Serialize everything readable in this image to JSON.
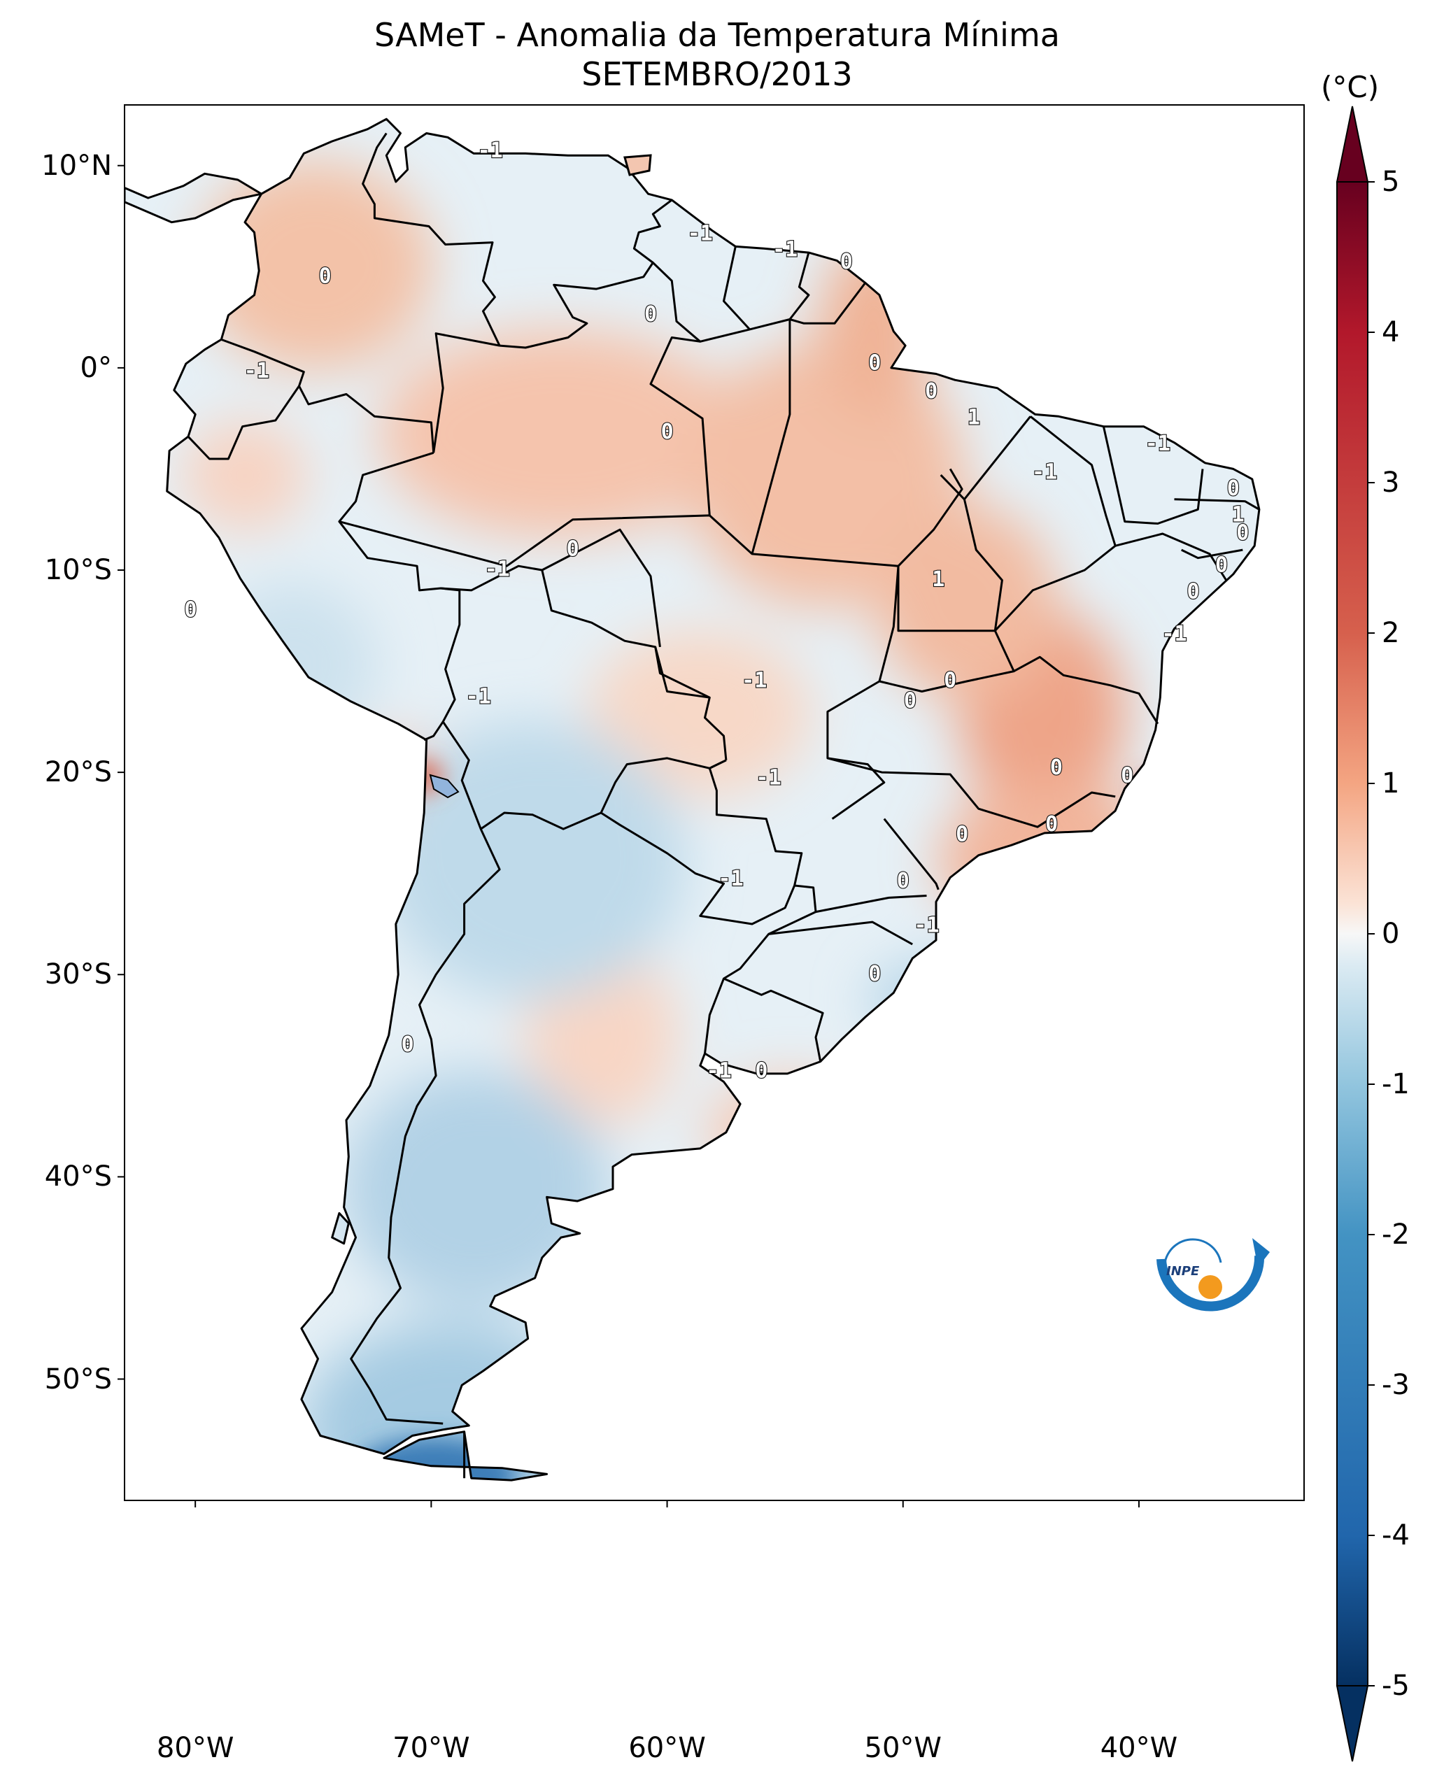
{
  "title": {
    "line1": "SAMeT - Anomalia da Temperatura Mínima",
    "line2": "SETEMBRO/2013"
  },
  "axes": {
    "lat_labels": [
      "10°N",
      "0°",
      "10°S",
      "20°S",
      "30°S",
      "40°S",
      "50°S"
    ],
    "lat_values": [
      10,
      0,
      -10,
      -20,
      -30,
      -40,
      -50
    ],
    "lon_labels": [
      "80°W",
      "70°W",
      "60°W",
      "50°W",
      "40°W"
    ],
    "lon_values": [
      -80,
      -70,
      -60,
      -50,
      -40
    ],
    "lon_range": [
      -83,
      -33
    ],
    "lat_range": [
      -56,
      13
    ]
  },
  "colorbar": {
    "unit": "(°C)",
    "ticks": [
      "5",
      "4",
      "3",
      "2",
      "1",
      "0",
      "-1",
      "-2",
      "-3",
      "-4",
      "-5"
    ],
    "tick_values": [
      5,
      4,
      3,
      2,
      1,
      0,
      -1,
      -2,
      -3,
      -4,
      -5
    ],
    "colors": {
      "max": "#67001f",
      "high": "#d6604d",
      "mid_high": "#f4a582",
      "zero": "#f7f7f7",
      "mid_low": "#92c5de",
      "low": "#4393c3",
      "min": "#053061"
    }
  },
  "contour_labels": [
    {
      "text": "-1",
      "lon": -67.5,
      "lat": 10.7
    },
    {
      "text": "0",
      "lon": -74.5,
      "lat": 4.5
    },
    {
      "text": "-1",
      "lon": -58.6,
      "lat": 6.6
    },
    {
      "text": "-1",
      "lon": -55.0,
      "lat": 5.8
    },
    {
      "text": "0",
      "lon": -52.4,
      "lat": 5.2
    },
    {
      "text": "0",
      "lon": -60.7,
      "lat": 2.6
    },
    {
      "text": "-1",
      "lon": -77.4,
      "lat": -0.2
    },
    {
      "text": "0",
      "lon": -51.2,
      "lat": 0.2
    },
    {
      "text": "0",
      "lon": -60.0,
      "lat": -3.2
    },
    {
      "text": "0",
      "lon": -48.8,
      "lat": -1.2
    },
    {
      "text": "1",
      "lon": -47.0,
      "lat": -2.5
    },
    {
      "text": "-1",
      "lon": -39.2,
      "lat": -3.8
    },
    {
      "text": "-1",
      "lon": -44.0,
      "lat": -5.2
    },
    {
      "text": "0",
      "lon": -36.0,
      "lat": -6.0
    },
    {
      "text": "1",
      "lon": -35.8,
      "lat": -7.3
    },
    {
      "text": "0",
      "lon": -35.6,
      "lat": -8.2
    },
    {
      "text": "0",
      "lon": -36.5,
      "lat": -9.8
    },
    {
      "text": "0",
      "lon": -37.7,
      "lat": -11.1
    },
    {
      "text": "-1",
      "lon": -38.5,
      "lat": -13.2
    },
    {
      "text": "0",
      "lon": -64.0,
      "lat": -9.0
    },
    {
      "text": "-1",
      "lon": -67.2,
      "lat": -10.0
    },
    {
      "text": "1",
      "lon": -48.5,
      "lat": -10.5
    },
    {
      "text": "0",
      "lon": -80.2,
      "lat": -12.0
    },
    {
      "text": "-1",
      "lon": -56.3,
      "lat": -15.5
    },
    {
      "text": "0",
      "lon": -48.0,
      "lat": -15.5
    },
    {
      "text": "0",
      "lon": -49.7,
      "lat": -16.5
    },
    {
      "text": "-1",
      "lon": -68.0,
      "lat": -16.3
    },
    {
      "text": "0",
      "lon": -43.5,
      "lat": -19.8
    },
    {
      "text": "0",
      "lon": -40.5,
      "lat": -20.2
    },
    {
      "text": "-1",
      "lon": -55.7,
      "lat": -20.3
    },
    {
      "text": "0",
      "lon": -43.7,
      "lat": -22.6
    },
    {
      "text": "0",
      "lon": -47.5,
      "lat": -23.1
    },
    {
      "text": "-1",
      "lon": -57.3,
      "lat": -25.3
    },
    {
      "text": "0",
      "lon": -50.0,
      "lat": -25.4
    },
    {
      "text": "-1",
      "lon": -49.0,
      "lat": -27.6
    },
    {
      "text": "0",
      "lon": -51.2,
      "lat": -30.0
    },
    {
      "text": "0",
      "lon": -71.0,
      "lat": -33.5
    },
    {
      "text": "-1",
      "lon": -57.8,
      "lat": -34.8
    },
    {
      "text": "0",
      "lon": -56.0,
      "lat": -34.8
    }
  ],
  "logo": {
    "text": "INPE",
    "name": "INPE"
  }
}
